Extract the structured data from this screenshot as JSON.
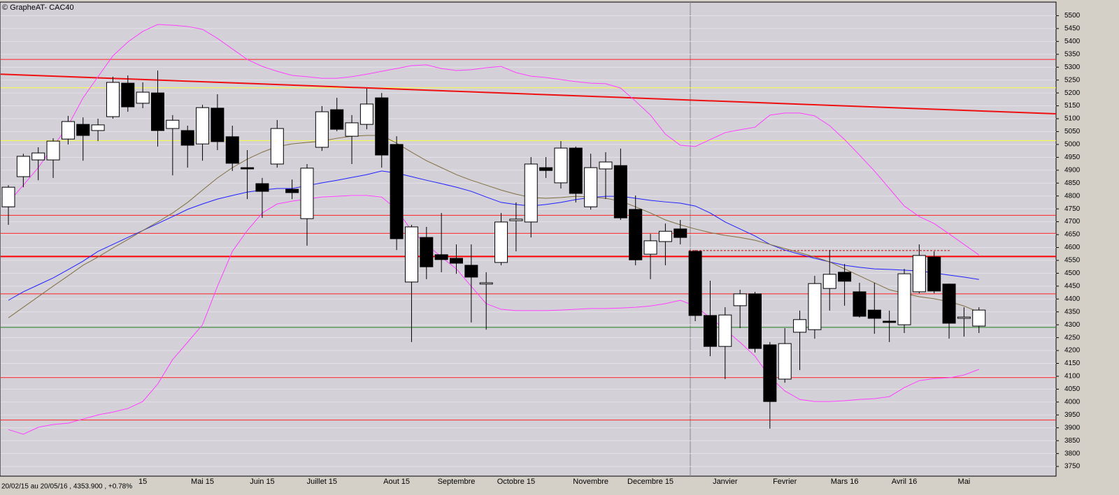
{
  "chart_data": {
    "type": "candlestick",
    "title": "© GrapheAT- CAC40",
    "footer": "20/02/15 au 20/05/16 , 4353.900 , +0.78%",
    "categories": [
      null,
      null,
      null,
      null,
      null,
      null,
      null,
      null,
      null,
      "15",
      null,
      null,
      null,
      "Mai 15",
      null,
      null,
      null,
      "Juin 15",
      null,
      null,
      null,
      "Juillet 15",
      null,
      null,
      null,
      null,
      "Aout 15",
      null,
      null,
      null,
      "Septembre",
      null,
      null,
      null,
      "Octobre 15",
      null,
      null,
      null,
      null,
      "Novembre",
      null,
      null,
      null,
      "Decembre 15",
      null,
      null,
      null,
      null,
      "Janvier",
      null,
      null,
      null,
      "Fevrier",
      null,
      null,
      null,
      "Mars 16",
      null,
      null,
      null,
      "Avril 16",
      null,
      null,
      null,
      "Mai",
      null
    ],
    "open": [
      4758,
      4875,
      4940,
      4940,
      5021,
      5078,
      5054,
      5108,
      5238,
      5160,
      5200,
      5062,
      5054,
      5002,
      5141,
      5030,
      4910,
      4848,
      4924,
      4826,
      4712,
      4989,
      5135,
      5032,
      5078,
      5181,
      5000,
      4466,
      4639,
      4572,
      4558,
      4531,
      4458,
      4542,
      4704,
      4699,
      4910,
      4851,
      4986,
      4758,
      4905,
      4918,
      4748,
      4574,
      4623,
      4672,
      4585,
      4336,
      4216,
      4374,
      4420,
      4222,
      4089,
      4271,
      4281,
      4441,
      4504,
      4428,
      4357,
      4314,
      4300,
      4428,
      4563,
      4458,
      4325,
      4295
    ],
    "high": [
      4842,
      4964,
      4989,
      5024,
      5111,
      5105,
      5100,
      5263,
      5268,
      5241,
      5287,
      5114,
      5073,
      5154,
      5195,
      5073,
      4978,
      4870,
      5095,
      4864,
      4924,
      5149,
      5181,
      5114,
      5217,
      5200,
      5032,
      4688,
      4680,
      4734,
      4612,
      4612,
      4504,
      4734,
      4775,
      4951,
      4951,
      5013,
      4992,
      4964,
      4970,
      4984,
      4802,
      4653,
      4693,
      4707,
      4590,
      4471,
      4368,
      4436,
      4428,
      4233,
      4287,
      4355,
      4490,
      4590,
      4536,
      4463,
      4463,
      4355,
      4517,
      4612,
      4585,
      4460,
      4368,
      4368
    ],
    "low": [
      4688,
      4834,
      4861,
      4870,
      5000,
      4937,
      5013,
      5100,
      5127,
      5141,
      4992,
      4880,
      4910,
      4937,
      4978,
      4897,
      4788,
      4715,
      4910,
      4788,
      4607,
      4975,
      5051,
      4924,
      5059,
      4910,
      4590,
      4233,
      4477,
      4504,
      4498,
      4309,
      4281,
      4531,
      4585,
      4639,
      4870,
      4829,
      4775,
      4747,
      4788,
      4707,
      4531,
      4477,
      4531,
      4612,
      4314,
      4178,
      4089,
      4287,
      4192,
      3897,
      4075,
      4124,
      4246,
      4355,
      4374,
      4328,
      4265,
      4233,
      4268,
      4422,
      4422,
      4246,
      4254,
      4268
    ],
    "close": [
      4834,
      4954,
      4967,
      5013,
      5089,
      5035,
      5076,
      5241,
      5146,
      5203,
      5054,
      5094,
      4997,
      5143,
      5011,
      4927,
      4905,
      4818,
      5062,
      4813,
      4908,
      5127,
      5059,
      5084,
      5157,
      4959,
      4634,
      4680,
      4525,
      4553,
      4539,
      4485,
      4463,
      4699,
      4710,
      4924,
      4899,
      4986,
      4810,
      4910,
      4932,
      4715,
      4552,
      4626,
      4663,
      4639,
      4336,
      4216,
      4338,
      4420,
      4208,
      4002,
      4227,
      4320,
      4460,
      4496,
      4469,
      4333,
      4325,
      4309,
      4498,
      4569,
      4431,
      4306,
      4330,
      4357
    ],
    "up_color": "#ffffff",
    "down_color": "#000000",
    "series": [
      {
        "color": "#ff40ff",
        "values": [
          4775,
          4842,
          4910,
          4992,
          5073,
          5181,
          5263,
          5344,
          5398,
          5439,
          5466,
          5463,
          5458,
          5447,
          5412,
          5371,
          5330,
          5303,
          5284,
          5268,
          5263,
          5257,
          5257,
          5263,
          5273,
          5284,
          5295,
          5306,
          5309,
          5295,
          5287,
          5290,
          5298,
          5303,
          5279,
          5265,
          5260,
          5252,
          5244,
          5238,
          5236,
          5219,
          5168,
          5114,
          5040,
          4997,
          4992,
          5019,
          5046,
          5057,
          5067,
          5114,
          5122,
          5122,
          5111,
          5073,
          5019,
          4959,
          4897,
          4829,
          4761,
          4720,
          4693,
          4653,
          4612,
          4571
        ]
      },
      {
        "color": "#ff40ff",
        "values": [
          3893,
          3875,
          3902,
          3913,
          3918,
          3934,
          3950,
          3961,
          3975,
          4002,
          4070,
          4165,
          4232,
          4300,
          4449,
          4585,
          4666,
          4734,
          4769,
          4780,
          4788,
          4796,
          4799,
          4802,
          4802,
          4796,
          4748,
          4666,
          4612,
          4563,
          4517,
          4449,
          4382,
          4360,
          4355,
          4355,
          4355,
          4357,
          4360,
          4363,
          4363,
          4365,
          4368,
          4373,
          4382,
          4395,
          4373,
          4327,
          4281,
          4232,
          4178,
          4097,
          4043,
          4010,
          4002,
          4002,
          4005,
          4010,
          4013,
          4021,
          4056,
          4083,
          4091,
          4094,
          4105,
          4127
        ]
      },
      {
        "color": "#2020ff",
        "values": [
          4395,
          4428,
          4455,
          4482,
          4514,
          4547,
          4585,
          4612,
          4639,
          4666,
          4693,
          4720,
          4748,
          4769,
          4788,
          4802,
          4815,
          4823,
          4829,
          4829,
          4840,
          4851,
          4861,
          4872,
          4883,
          4897,
          4889,
          4875,
          4861,
          4848,
          4834,
          4818,
          4796,
          4775,
          4767,
          4761,
          4767,
          4775,
          4786,
          4794,
          4799,
          4799,
          4791,
          4783,
          4777,
          4772,
          4761,
          4734,
          4699,
          4672,
          4645,
          4612,
          4590,
          4574,
          4558,
          4544,
          4531,
          4523,
          4517,
          4515,
          4512,
          4509,
          4501,
          4493,
          4485,
          4476
        ]
      },
      {
        "color": "#807040",
        "values": [
          4327,
          4368,
          4409,
          4450,
          4490,
          4531,
          4563,
          4598,
          4631,
          4666,
          4699,
          4734,
          4775,
          4823,
          4870,
          4910,
          4943,
          4970,
          4992,
          5002,
          5008,
          5013,
          5024,
          5032,
          5035,
          5035,
          5005,
          4970,
          4937,
          4910,
          4883,
          4861,
          4842,
          4823,
          4807,
          4794,
          4791,
          4794,
          4799,
          4796,
          4791,
          4780,
          4758,
          4734,
          4707,
          4688,
          4672,
          4658,
          4647,
          4639,
          4628,
          4612,
          4596,
          4580,
          4563,
          4544,
          4517,
          4490,
          4463,
          4436,
          4422,
          4409,
          4401,
          4390,
          4373,
          4349
        ]
      }
    ],
    "hlines": [
      {
        "value": 5330,
        "color": "#ff2020"
      },
      {
        "value": 5220,
        "color": "#ffff40"
      },
      {
        "value": 5015,
        "color": "#ffff40"
      },
      {
        "value": 4725,
        "color": "#ff2020"
      },
      {
        "value": 4655,
        "color": "#ff2020"
      },
      {
        "value": 4565,
        "color": "#ff0000"
      },
      {
        "value": 4420,
        "color": "#ff2020"
      },
      {
        "value": 4290,
        "color": "#208020"
      },
      {
        "value": 4095,
        "color": "#ff2020"
      },
      {
        "value": 3930,
        "color": "#ff2020"
      }
    ],
    "trend_line": {
      "values": [
        5273,
        5119
      ],
      "color": "#ee1010"
    },
    "dashed_level": {
      "value": 4588,
      "color": "#cc0000"
    },
    "ylim": [
      3715,
      5550
    ],
    "yticks": [
      3750,
      3800,
      3850,
      3900,
      3950,
      4000,
      4050,
      4100,
      4150,
      4200,
      4250,
      4300,
      4350,
      4400,
      4450,
      4500,
      4550,
      4600,
      4650,
      4700,
      4750,
      4800,
      4850,
      4900,
      4950,
      5000,
      5050,
      5100,
      5150,
      5200,
      5250,
      5300,
      5350,
      5400,
      5450,
      5500
    ],
    "grid": true
  }
}
